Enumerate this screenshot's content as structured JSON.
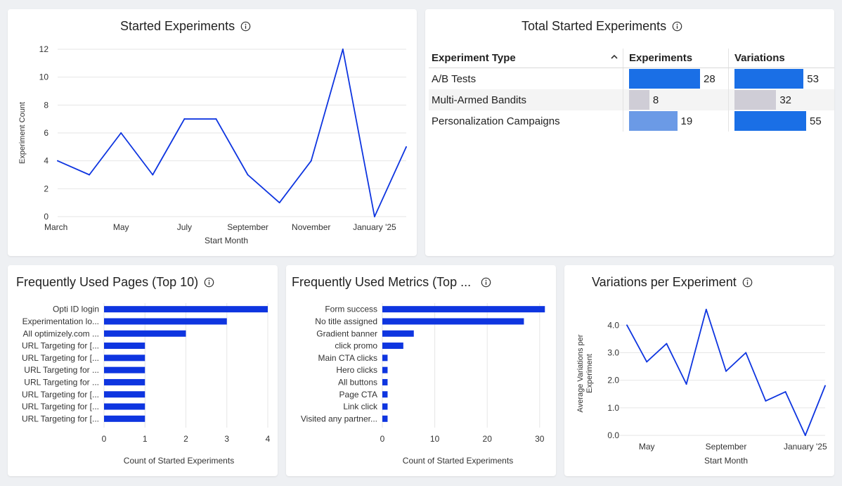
{
  "colors": {
    "line": "#0e35e0",
    "bar": "#0e35e0",
    "grid": "#e6e6e6",
    "tbl_blue": "#1a6fe6",
    "tbl_light_blue": "#6b9ae6",
    "tbl_gray": "#cfcdd6"
  },
  "started": {
    "title": "Started Experiments",
    "chart_data": {
      "type": "line",
      "title": "Started Experiments",
      "xlabel": "Start Month",
      "ylabel": "Experiment Count",
      "x": [
        "March",
        "April",
        "May",
        "June",
        "July",
        "August",
        "September",
        "October",
        "November",
        "December",
        "January '25",
        "February"
      ],
      "x_tick_labels": [
        "March",
        "May",
        "July",
        "September",
        "November",
        "January '25"
      ],
      "values": [
        4,
        3,
        6,
        3,
        7,
        7,
        3,
        1,
        4,
        12,
        0,
        5
      ],
      "yticks": [
        0,
        2,
        4,
        6,
        8,
        10,
        12
      ],
      "ylim": [
        0,
        12
      ],
      "grid": true
    }
  },
  "total": {
    "title": "Total Started Experiments",
    "headers": {
      "type": "Experiment Type",
      "experiments": "Experiments",
      "variations": "Variations"
    },
    "rows": [
      {
        "type": "A/B Tests",
        "experiments": 28,
        "variations": 53
      },
      {
        "type": "Multi-Armed Bandits",
        "experiments": 8,
        "variations": 32
      },
      {
        "type": "Personalization Campaigns",
        "experiments": 19,
        "variations": 55
      }
    ]
  },
  "pages": {
    "title": "Frequently Used Pages (Top 10)",
    "chart_data": {
      "type": "bar",
      "orientation": "horizontal",
      "categories": [
        "Opti ID login",
        "Experimentation lo...",
        "All optimizely.com ...",
        "URL Targeting for [...",
        "URL Targeting for [...",
        "URL Targeting for ...",
        "URL Targeting for ...",
        "URL Targeting for [...",
        "URL Targeting for [...",
        "URL Targeting for [..."
      ],
      "values": [
        4,
        3,
        2,
        1,
        1,
        1,
        1,
        1,
        1,
        1
      ],
      "xlabel": "Count of Started Experiments",
      "xticks": [
        0,
        1,
        2,
        3,
        4
      ],
      "xlim": [
        0,
        4
      ],
      "grid": true
    }
  },
  "metrics": {
    "title": "Frequently Used Metrics (Top ...",
    "chart_data": {
      "type": "bar",
      "orientation": "horizontal",
      "categories": [
        "Form success",
        "No title assigned",
        "Gradient banner",
        "click promo",
        "Main CTA clicks",
        "Hero clicks",
        "All buttons",
        "Page CTA",
        "Link click",
        "Visited any partner..."
      ],
      "values": [
        31,
        27,
        6,
        4,
        1,
        1,
        1,
        1,
        1,
        1
      ],
      "xlabel": "Count of Started Experiments",
      "xticks": [
        0,
        10,
        20,
        30
      ],
      "xlim": [
        0,
        31.5
      ],
      "grid": true
    }
  },
  "variations": {
    "title": "Variations per Experiment",
    "chart_data": {
      "type": "line",
      "xlabel": "Start Month",
      "ylabel_lines": [
        "Average Variations per",
        "Experiment"
      ],
      "x": [
        "April",
        "May",
        "June",
        "July",
        "August",
        "September",
        "October",
        "November",
        "December",
        "January '25",
        "February"
      ],
      "x_tick_labels": [
        "May",
        "September",
        "January '25"
      ],
      "values": [
        4.0,
        2.67,
        3.33,
        1.86,
        4.57,
        2.33,
        3.0,
        1.25,
        1.58,
        0.0,
        1.8
      ],
      "yticks": [
        "0.0",
        "1.0",
        "2.0",
        "3.0",
        "4.0"
      ],
      "ylim": [
        0,
        4.8
      ],
      "grid": true
    }
  }
}
